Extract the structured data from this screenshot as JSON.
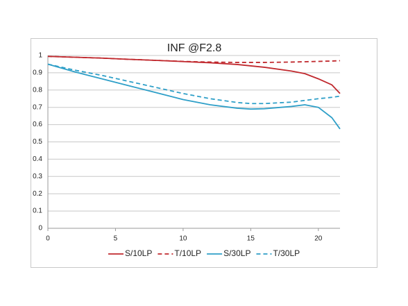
{
  "chart_data": {
    "type": "line",
    "title": "INF @F2.8",
    "x": [
      0,
      2,
      4,
      6,
      8,
      10,
      12,
      14,
      15,
      16,
      18,
      19,
      20,
      21,
      21.6
    ],
    "series": [
      {
        "name": "S/10LP",
        "color": "#c0282d",
        "dashed": false,
        "values": [
          0.995,
          0.99,
          0.985,
          0.978,
          0.972,
          0.965,
          0.958,
          0.948,
          0.94,
          0.932,
          0.91,
          0.895,
          0.865,
          0.83,
          0.78
        ]
      },
      {
        "name": "T/10LP",
        "color": "#c0282d",
        "dashed": true,
        "values": [
          0.995,
          0.99,
          0.985,
          0.978,
          0.972,
          0.966,
          0.962,
          0.96,
          0.96,
          0.96,
          0.962,
          0.964,
          0.966,
          0.968,
          0.97
        ]
      },
      {
        "name": "S/30LP",
        "color": "#2e9fc8",
        "dashed": false,
        "values": [
          0.95,
          0.905,
          0.865,
          0.825,
          0.785,
          0.745,
          0.715,
          0.695,
          0.69,
          0.692,
          0.705,
          0.715,
          0.7,
          0.64,
          0.575
        ]
      },
      {
        "name": "T/30LP",
        "color": "#2e9fc8",
        "dashed": true,
        "values": [
          0.95,
          0.915,
          0.885,
          0.85,
          0.815,
          0.78,
          0.75,
          0.728,
          0.722,
          0.722,
          0.73,
          0.74,
          0.75,
          0.758,
          0.765
        ]
      }
    ],
    "xlim": [
      0,
      21.6
    ],
    "xticks": [
      0,
      5,
      10,
      15,
      20
    ],
    "ylim": [
      0,
      1
    ],
    "yticks": [
      0,
      0.1,
      0.2,
      0.3,
      0.4,
      0.5,
      0.6,
      0.7,
      0.8,
      0.9,
      1
    ],
    "grid": true
  }
}
